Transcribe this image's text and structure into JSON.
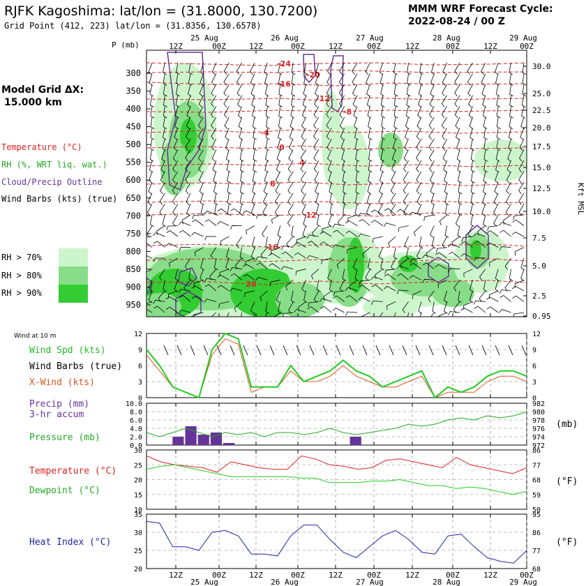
{
  "header": {
    "title": "RJFK Kagoshima:  lat/lon = (31.8000, 130.7200)",
    "grid_point": "Grid Point (412, 223) lat/lon = (31.8356, 130.6578)",
    "cycle_label": "MMM WRF Forecast Cycle:",
    "cycle_value": "2022-08-24 / 00  Z",
    "model_grid_label": "Model Grid ΔX:",
    "model_grid_value": "15.000 km"
  },
  "time_axis": {
    "labels": [
      "12Z",
      "00Z",
      "12Z",
      "00Z",
      "12Z",
      "00Z",
      "12Z",
      "00Z",
      "12Z",
      "00Z"
    ],
    "date_labels": [
      "25 Aug",
      "26 Aug",
      "27 Aug",
      "28 Aug",
      "29 Aug"
    ],
    "pressure_label": "P (mb)"
  },
  "legend": {
    "temperature": "Temperature (°C)",
    "rh": "RH (%, WRT liq. wat.)",
    "cloud": "Cloud/Precip Outline",
    "wind": "Wind Barbs (kts) (true)",
    "rh70": "RH > 70%",
    "rh80": "RH > 80%",
    "rh90": "RH > 90%",
    "kft": "Kft MSL",
    "wind_10m": "Wind at 10 m",
    "wind_spd": "Wind Spd (kts)",
    "wind_barbs": "Wind Barbs (true)",
    "xwind": "X-Wind (kts)",
    "precip": "Precip (mm)",
    "precip_sub": "3-hr accum",
    "pressure": "Pressure (mb)",
    "pressure_unit": "(mb)",
    "temp": "Temperature (°C)",
    "dewpoint": "Dewpoint (°C)",
    "f_unit": "(°F)",
    "heat_index": "Heat Index (°C)"
  },
  "colors": {
    "temperature": "#dd2222",
    "rh": "#22bb22",
    "cloud": "#663399",
    "heat_index": "#2222aa",
    "rh70": "#ccf5cc",
    "rh80": "#88dd88",
    "rh90": "#33cc33"
  },
  "chart_data": [
    {
      "type": "heatmap",
      "title": "Pressure-time cross section",
      "pressure_levels": [
        "300",
        "350",
        "400",
        "450",
        "500",
        "550",
        "600",
        "650",
        "700",
        "750",
        "800",
        "850",
        "900",
        "950"
      ],
      "kft_levels": [
        "30.0",
        "25.0",
        "22.5",
        "20.0",
        "17.5",
        "15.0",
        "12.5",
        "10.0",
        "7.5",
        "5.0",
        "2.5",
        "0.95"
      ],
      "isotherm_labels": [
        "-24",
        "-20",
        "-16",
        "-12",
        "-8",
        "-4",
        "0",
        "4",
        "8",
        "12",
        "16",
        "20"
      ]
    },
    {
      "type": "line",
      "title": "Wind at 10 m",
      "y_ticks": [
        "12",
        "9",
        "6",
        "3",
        "0"
      ],
      "ylim": [
        0,
        12
      ],
      "series": [
        {
          "name": "Wind Spd (kts)",
          "values": [
            9,
            6,
            2,
            1,
            0,
            9,
            12,
            11,
            2,
            2,
            2,
            6,
            3,
            4,
            5,
            7,
            5,
            4,
            2,
            3,
            4,
            5,
            0,
            2,
            1,
            2,
            4,
            5,
            5,
            4
          ]
        },
        {
          "name": "X-Wind (kts)",
          "values": [
            8,
            5,
            2,
            1,
            0,
            8,
            11,
            10,
            1,
            2,
            2,
            5,
            3,
            3,
            4,
            6,
            4,
            3,
            2,
            2,
            3,
            4,
            0,
            1,
            1,
            1,
            3,
            4,
            4,
            3
          ]
        }
      ]
    },
    {
      "type": "bar",
      "title": "Precip (mm) 3-hr accum / Pressure (mb)",
      "y_ticks": [
        "10.0",
        "8.0",
        "6.0",
        "4.0",
        "2.0",
        "0.0"
      ],
      "y2_ticks": [
        "982",
        "980",
        "978",
        "976",
        "974",
        "972"
      ],
      "series": [
        {
          "name": "Precip (mm)",
          "values": [
            0,
            0,
            2,
            4.5,
            2.5,
            3,
            0.5,
            0,
            0,
            0,
            0,
            0,
            0,
            0,
            0,
            0,
            2,
            0,
            0,
            0,
            0,
            0,
            0,
            0,
            0,
            0,
            0,
            0,
            0,
            0
          ]
        },
        {
          "name": "Pressure (mb)",
          "values": [
            975,
            974,
            975,
            976,
            975,
            974,
            975,
            974.5,
            975,
            974,
            975,
            975,
            974.5,
            975,
            976,
            975,
            974.5,
            975,
            975.5,
            976,
            977,
            976.5,
            977,
            978,
            978.5,
            978,
            979,
            978.5,
            979,
            980
          ]
        }
      ]
    },
    {
      "type": "line",
      "title": "Temperature / Dewpoint",
      "y_ticks": [
        "30",
        "25",
        "20",
        "15",
        "10"
      ],
      "y2_ticks": [
        "86",
        "77",
        "68",
        "59",
        "50"
      ],
      "ylim": [
        10,
        30
      ],
      "series": [
        {
          "name": "Temperature (°C)",
          "values": [
            28,
            26,
            25,
            24.5,
            24,
            22.5,
            26,
            25,
            24,
            23.5,
            23.5,
            28,
            27,
            25,
            24.5,
            23.5,
            24,
            26.5,
            27,
            26,
            25,
            24,
            27.5,
            25,
            24,
            23,
            22,
            24
          ]
        },
        {
          "name": "Dewpoint (°C)",
          "values": [
            23.5,
            24.5,
            25,
            24,
            23,
            22,
            21,
            21,
            21,
            21,
            21,
            20.5,
            20.5,
            19,
            19,
            19,
            19.5,
            19.5,
            20,
            19,
            18,
            18,
            17,
            17.5,
            17,
            16,
            15,
            16
          ]
        }
      ]
    },
    {
      "type": "line",
      "title": "Heat Index",
      "y_ticks": [
        "35",
        "30",
        "25",
        "20"
      ],
      "y2_ticks": [
        "95",
        "86",
        "77",
        "68"
      ],
      "ylim": [
        20,
        35
      ],
      "series": [
        {
          "name": "Heat Index (°C)",
          "values": [
            33,
            32.5,
            26,
            26,
            25,
            30,
            30.5,
            29,
            24,
            24,
            23.5,
            29,
            32,
            32,
            28,
            24.5,
            23,
            26,
            29,
            30.5,
            28,
            24.5,
            24,
            29,
            29.5,
            26,
            23,
            22,
            21.5,
            25
          ]
        }
      ]
    }
  ]
}
